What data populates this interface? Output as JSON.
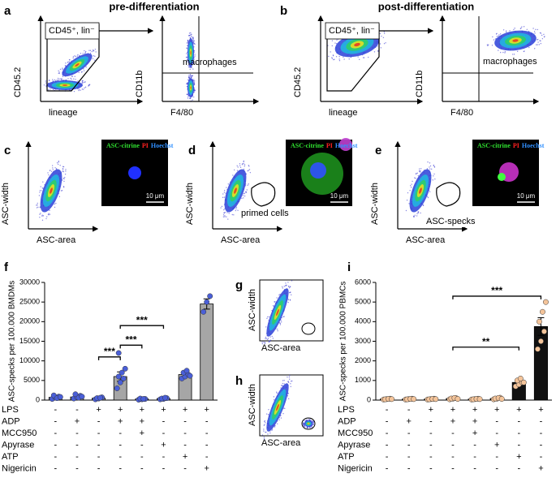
{
  "headings": {
    "pre": "pre-differentiation",
    "post": "post-differentiation"
  },
  "panel_letters": [
    "a",
    "b",
    "c",
    "d",
    "e",
    "f",
    "g",
    "h",
    "i"
  ],
  "flow_labels": {
    "cd45": "CD45.2",
    "lineage": "lineage",
    "cd11b": "CD11b",
    "f480": "F4/80",
    "gate": "CD45⁺, lin⁻",
    "macrophages": "macrophages",
    "asc_width": "ASC-width",
    "asc_area": "ASC-area",
    "primed": "primed cells",
    "specks": "ASC-specks"
  },
  "image_labels": {
    "citrine": "ASC-citrine",
    "pi": "PI",
    "hoechst": "Hoechst",
    "scale": "10 μm"
  },
  "chart_data": [
    {
      "type": "bar",
      "ylabel": "ASC-specks per 100.000 BMDMs",
      "ylim": [
        0,
        30000
      ],
      "yticks": [
        0,
        5000,
        10000,
        15000,
        20000,
        25000,
        30000
      ],
      "color": "#a6a6a6",
      "point_color": "#4a5fd8",
      "values": [
        700,
        800,
        500,
        6000,
        300,
        400,
        6500,
        24500
      ],
      "errors": [
        150,
        150,
        100,
        1200,
        80,
        80,
        500,
        1300
      ],
      "points": [
        [
          300,
          600,
          900,
          1200,
          500,
          800
        ],
        [
          400,
          700,
          1100,
          1500,
          600,
          900
        ],
        [
          200,
          400,
          700,
          500,
          600
        ],
        [
          3000,
          4500,
          5500,
          6000,
          7000,
          8000,
          12000
        ],
        [
          100,
          200,
          300,
          400,
          300
        ],
        [
          200,
          300,
          500,
          400,
          600
        ],
        [
          5500,
          6000,
          6500,
          7000,
          7500,
          6200
        ],
        [
          22500,
          25000,
          26500
        ]
      ],
      "brackets": [
        {
          "from": 2,
          "to": 3,
          "y": 11000,
          "label": "***"
        },
        {
          "from": 3,
          "to": 4,
          "y": 14000,
          "label": "***"
        },
        {
          "from": 3,
          "to": 5,
          "y": 19000,
          "label": "***"
        }
      ],
      "treatments": [
        {
          "name": "LPS",
          "signs": [
            "-",
            "-",
            "+",
            "+",
            "+",
            "+",
            "+",
            "+"
          ]
        },
        {
          "name": "ADP",
          "signs": [
            "-",
            "+",
            "-",
            "+",
            "+",
            "-",
            "-",
            "-"
          ]
        },
        {
          "name": "MCC950",
          "signs": [
            "-",
            "-",
            "-",
            "-",
            "+",
            "-",
            "-",
            "-"
          ]
        },
        {
          "name": "Apyrase",
          "signs": [
            "-",
            "-",
            "-",
            "-",
            "-",
            "+",
            "-",
            "-"
          ]
        },
        {
          "name": "ATP",
          "signs": [
            "-",
            "-",
            "-",
            "-",
            "-",
            "-",
            "+",
            "-"
          ]
        },
        {
          "name": "Nigericin",
          "signs": [
            "-",
            "-",
            "-",
            "-",
            "-",
            "-",
            "-",
            "+"
          ]
        }
      ]
    },
    {
      "type": "bar",
      "ylabel": "ASC-specks per 100.000 PBMCs",
      "ylim": [
        0,
        6000
      ],
      "yticks": [
        0,
        1000,
        2000,
        3000,
        4000,
        5000,
        6000
      ],
      "color": "#111111",
      "point_color": "#f4c49a",
      "values": [
        50,
        50,
        50,
        80,
        50,
        80,
        900,
        3750
      ],
      "errors": [
        10,
        10,
        10,
        15,
        10,
        15,
        100,
        450
      ],
      "points": [
        [
          30,
          50,
          70,
          40,
          60,
          50
        ],
        [
          30,
          50,
          70,
          40,
          60,
          50
        ],
        [
          30,
          50,
          70,
          40,
          60,
          50
        ],
        [
          40,
          70,
          100,
          80,
          110,
          60
        ],
        [
          30,
          50,
          70,
          40,
          60,
          50
        ],
        [
          40,
          70,
          120,
          80,
          110,
          60
        ],
        [
          700,
          800,
          900,
          1000,
          1100,
          900
        ],
        [
          2600,
          3000,
          3500,
          4000,
          4500,
          5000
        ]
      ],
      "brackets": [
        {
          "from": 3,
          "to": 6,
          "y": 2700,
          "label": "**"
        },
        {
          "from": 3,
          "to": 7,
          "y": 5300,
          "label": "***"
        }
      ],
      "treatments": [
        {
          "name": "LPS",
          "signs": [
            "-",
            "-",
            "+",
            "+",
            "+",
            "+",
            "+",
            "+"
          ]
        },
        {
          "name": "ADP",
          "signs": [
            "-",
            "+",
            "-",
            "+",
            "+",
            "-",
            "-",
            "-"
          ]
        },
        {
          "name": "MCC950",
          "signs": [
            "-",
            "-",
            "-",
            "-",
            "+",
            "-",
            "-",
            "-"
          ]
        },
        {
          "name": "Apyrase",
          "signs": [
            "-",
            "-",
            "-",
            "-",
            "-",
            "+",
            "-",
            "-"
          ]
        },
        {
          "name": "ATP",
          "signs": [
            "-",
            "-",
            "-",
            "-",
            "-",
            "-",
            "+",
            "-"
          ]
        },
        {
          "name": "Nigericin",
          "signs": [
            "-",
            "-",
            "-",
            "-",
            "-",
            "-",
            "-",
            "+"
          ]
        }
      ]
    }
  ]
}
